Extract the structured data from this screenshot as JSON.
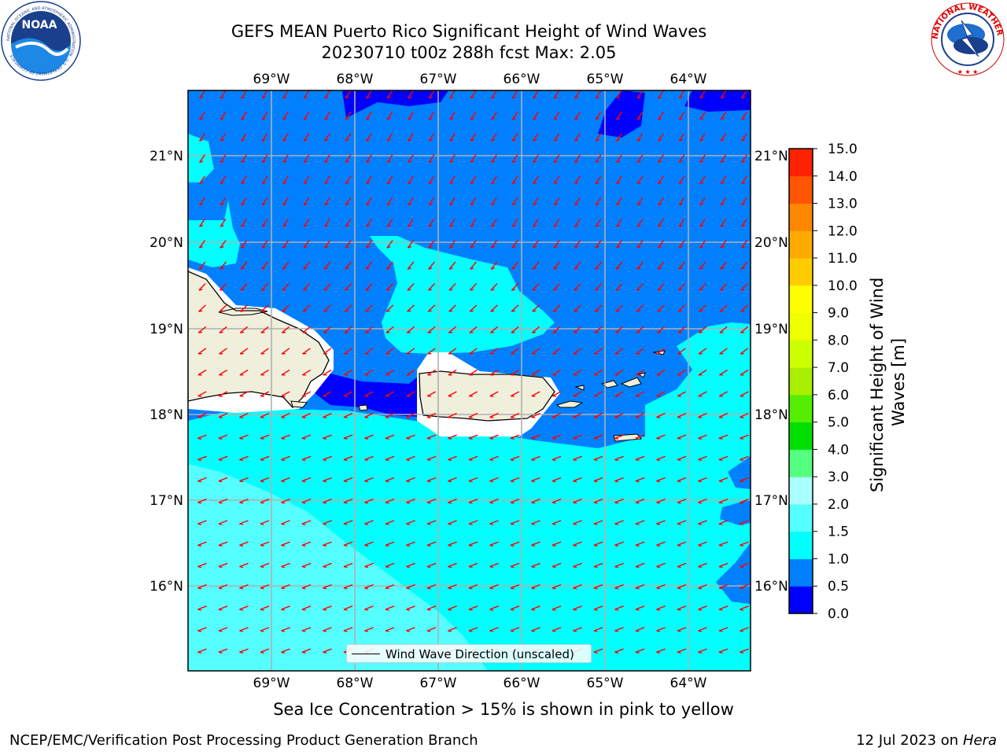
{
  "header": {
    "title_line1": "GEFS MEAN Puerto Rico Significant Height of Wind Waves",
    "title_line2": "20230710 t00z 288h fcst   Max: 2.05",
    "noaa_logo_text": "NOAA",
    "noaa_ring_text": "NATIONAL OCEANIC AND ATMOSPHERIC ADMINISTRATION · U.S. DEPARTMENT OF COMMERCE",
    "nws_ring_text": "NATIONAL WEATHER SERVICE"
  },
  "map": {
    "lon_labels": [
      "69°W",
      "68°W",
      "67°W",
      "66°W",
      "65°W",
      "64°W"
    ],
    "lat_labels": [
      "21°N",
      "20°N",
      "19°N",
      "18°N",
      "17°N",
      "16°N"
    ],
    "legend_label": "Wind Wave Direction (unscaled)",
    "colors": {
      "ocean_dark": "#0000ff",
      "ocean_mid": "#0080ff",
      "ocean_light": "#00ffff",
      "ocean_lighter": "#55ffff",
      "land": "#efefdc",
      "arrow": "#ff0000"
    }
  },
  "colorbar": {
    "label": "Significant Height of Wind Waves [m]",
    "ticks": [
      "0.0",
      "0.5",
      "1.0",
      "1.5",
      "2.0",
      "3.0",
      "4.0",
      "5.0",
      "6.0",
      "7.0",
      "8.0",
      "9.0",
      "10.0",
      "11.0",
      "12.0",
      "13.0",
      "14.0",
      "15.0"
    ],
    "colors": [
      "#0000ff",
      "#0080ff",
      "#00ffff",
      "#55ffff",
      "#aaffff",
      "#55ff80",
      "#00e000",
      "#55ee00",
      "#aaee00",
      "#ccff00",
      "#eeff00",
      "#ffff00",
      "#ffcc00",
      "#ffaa00",
      "#ff8800",
      "#ff5500",
      "#ff2200",
      "#ff0000"
    ]
  },
  "footer": {
    "note": "Sea Ice Concentration > 15% is shown in pink to yellow",
    "left": "NCEP/EMC/Verification Post Processing Product Generation Branch",
    "right_prefix": "12 Jul 2023 on ",
    "right_host": "Hera"
  }
}
